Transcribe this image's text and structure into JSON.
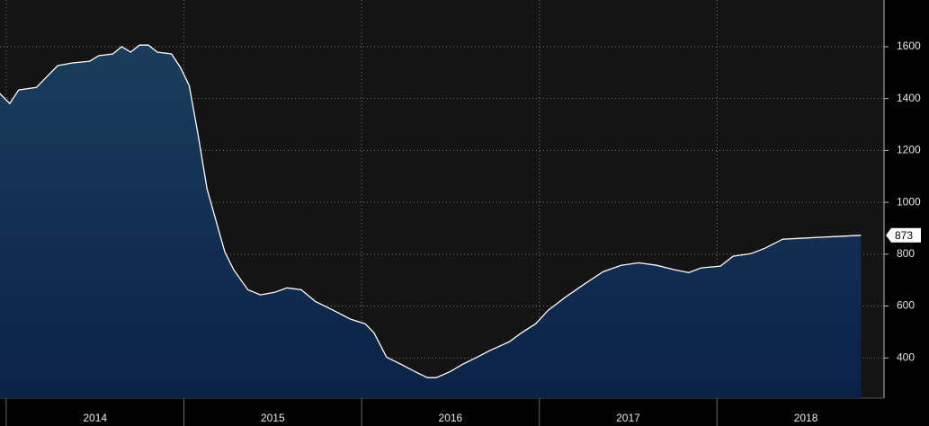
{
  "chart_data": {
    "type": "area",
    "x": [
      2013.96,
      2014.02,
      2014.07,
      2014.17,
      2014.24,
      2014.29,
      2014.37,
      2014.47,
      2014.52,
      2014.6,
      2014.65,
      2014.7,
      2014.75,
      2014.8,
      2014.85,
      2014.93,
      2014.98,
      2015.03,
      2015.08,
      2015.13,
      2015.18,
      2015.23,
      2015.28,
      2015.36,
      2015.43,
      2015.51,
      2015.58,
      2015.66,
      2015.74,
      2015.84,
      2015.94,
      2016.02,
      2016.07,
      2016.14,
      2016.22,
      2016.29,
      2016.37,
      2016.42,
      2016.5,
      2016.57,
      2016.65,
      2016.72,
      2016.83,
      2016.9,
      2016.98,
      2017.05,
      2017.15,
      2017.26,
      2017.36,
      2017.46,
      2017.56,
      2017.66,
      2017.76,
      2017.84,
      2017.91,
      2018.02,
      2018.09,
      2018.19,
      2018.27,
      2018.37,
      2018.47,
      2018.57,
      2018.67,
      2018.81
    ],
    "series": [
      {
        "color": "#ffffff",
        "values": [
          1422,
          1381,
          1433,
          1443,
          1492,
          1527,
          1537,
          1544,
          1565,
          1572,
          1600,
          1579,
          1606,
          1606,
          1579,
          1572,
          1520,
          1450,
          1260,
          1052,
          930,
          809,
          740,
          663,
          643,
          653,
          670,
          663,
          618,
          584,
          549,
          532,
          497,
          403,
          376,
          351,
          324,
          324,
          348,
          376,
          403,
          428,
          462,
          497,
          532,
          584,
          636,
          688,
          733,
          757,
          767,
          757,
          740,
          729,
          747,
          754,
          792,
          802,
          823,
          858,
          861,
          865,
          868,
          873
        ]
      }
    ],
    "xlim": [
      2013.965,
      2018.94
    ],
    "xticks": [
      2014,
      2015,
      2016,
      2017,
      2018
    ],
    "ylim": [
      245,
      1780
    ],
    "yticks": [
      400,
      600,
      800,
      1000,
      1200,
      1400,
      1600
    ],
    "grid": true
  }
}
